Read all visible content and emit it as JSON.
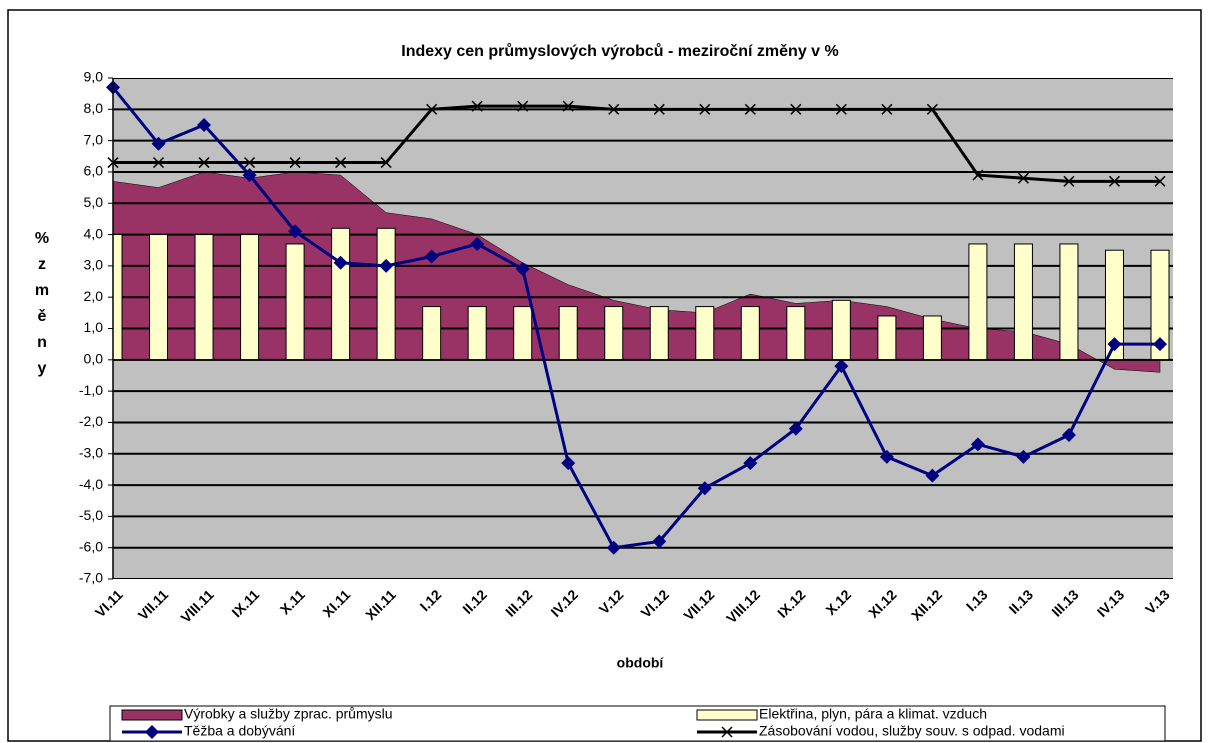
{
  "chart_data": {
    "type": "combo",
    "title": "Indexy cen průmyslových výrobců - meziroční změny v %",
    "x_label": "období",
    "y_label": "% změny",
    "categories": [
      "VI.11",
      "VII.11",
      "VIII.11",
      "IX.11",
      "X.11",
      "XI.11",
      "XII.11",
      "I.12",
      "II.12",
      "III.12",
      "IV.12",
      "V.12",
      "VI.12",
      "VII.12",
      "VIII.12",
      "IX.12",
      "X.12",
      "XI.12",
      "XII.12",
      "I.13",
      "II.13",
      "III.13",
      "IV.13",
      "V.13"
    ],
    "series": [
      {
        "name": "Výrobky a služby zprac. průmyslu",
        "kind": "area",
        "color": "#993366",
        "values": [
          5.7,
          5.5,
          6.0,
          5.8,
          6.0,
          5.9,
          4.7,
          4.5,
          4.0,
          3.1,
          2.4,
          1.9,
          1.6,
          1.5,
          2.1,
          1.8,
          1.9,
          1.7,
          1.3,
          1.0,
          0.9,
          0.5,
          -0.3,
          -0.4
        ]
      },
      {
        "name": "Elektřina, plyn, pára a klimat. vzduch",
        "kind": "bar",
        "color": "#ffffcc",
        "values": [
          4.0,
          4.0,
          4.0,
          4.0,
          3.7,
          4.2,
          4.2,
          1.7,
          1.7,
          1.7,
          1.7,
          1.7,
          1.7,
          1.7,
          1.7,
          1.7,
          1.9,
          1.4,
          1.4,
          3.7,
          3.7,
          3.7,
          3.5,
          3.5
        ]
      },
      {
        "name": "Těžba a dobývání",
        "kind": "line",
        "marker": "diamond",
        "color": "#000080",
        "values": [
          8.7,
          6.9,
          7.5,
          5.9,
          4.1,
          3.1,
          3.0,
          3.3,
          3.7,
          2.9,
          -3.3,
          -6.0,
          -5.8,
          -4.1,
          -3.3,
          -2.2,
          -0.2,
          -3.1,
          -3.7,
          -2.7,
          -3.1,
          -2.4,
          0.5,
          0.5
        ]
      },
      {
        "name": "Zásobování vodou, služby souv. s odpad. vodami",
        "kind": "line",
        "marker": "x",
        "color": "#000000",
        "values": [
          6.3,
          6.3,
          6.3,
          6.3,
          6.3,
          6.3,
          6.3,
          8.0,
          8.1,
          8.1,
          8.1,
          8.0,
          8.0,
          8.0,
          8.0,
          8.0,
          8.0,
          8.0,
          8.0,
          5.9,
          5.8,
          5.7,
          5.7,
          5.7
        ]
      }
    ],
    "ylim": [
      -7,
      9
    ],
    "yticks": [
      {
        "value": -7,
        "label": "-7,0"
      },
      {
        "value": -6,
        "label": "-6,0"
      },
      {
        "value": -5,
        "label": "-5,0"
      },
      {
        "value": -4,
        "label": "-4,0"
      },
      {
        "value": -3,
        "label": "-3,0"
      },
      {
        "value": -2,
        "label": "-2,0"
      },
      {
        "value": -1,
        "label": "-1,0"
      },
      {
        "value": 0,
        "label": "0,0"
      },
      {
        "value": 1,
        "label": "1,0"
      },
      {
        "value": 2,
        "label": "2,0"
      },
      {
        "value": 3,
        "label": "3,0"
      },
      {
        "value": 4,
        "label": "4,0"
      },
      {
        "value": 5,
        "label": "5,0"
      },
      {
        "value": 6,
        "label": "6,0"
      },
      {
        "value": 7,
        "label": "7,0"
      },
      {
        "value": 8,
        "label": "8,0"
      },
      {
        "value": 9,
        "label": "9,0"
      }
    ],
    "grid": true,
    "legend": "bottom",
    "background": "#c0c0c0"
  }
}
